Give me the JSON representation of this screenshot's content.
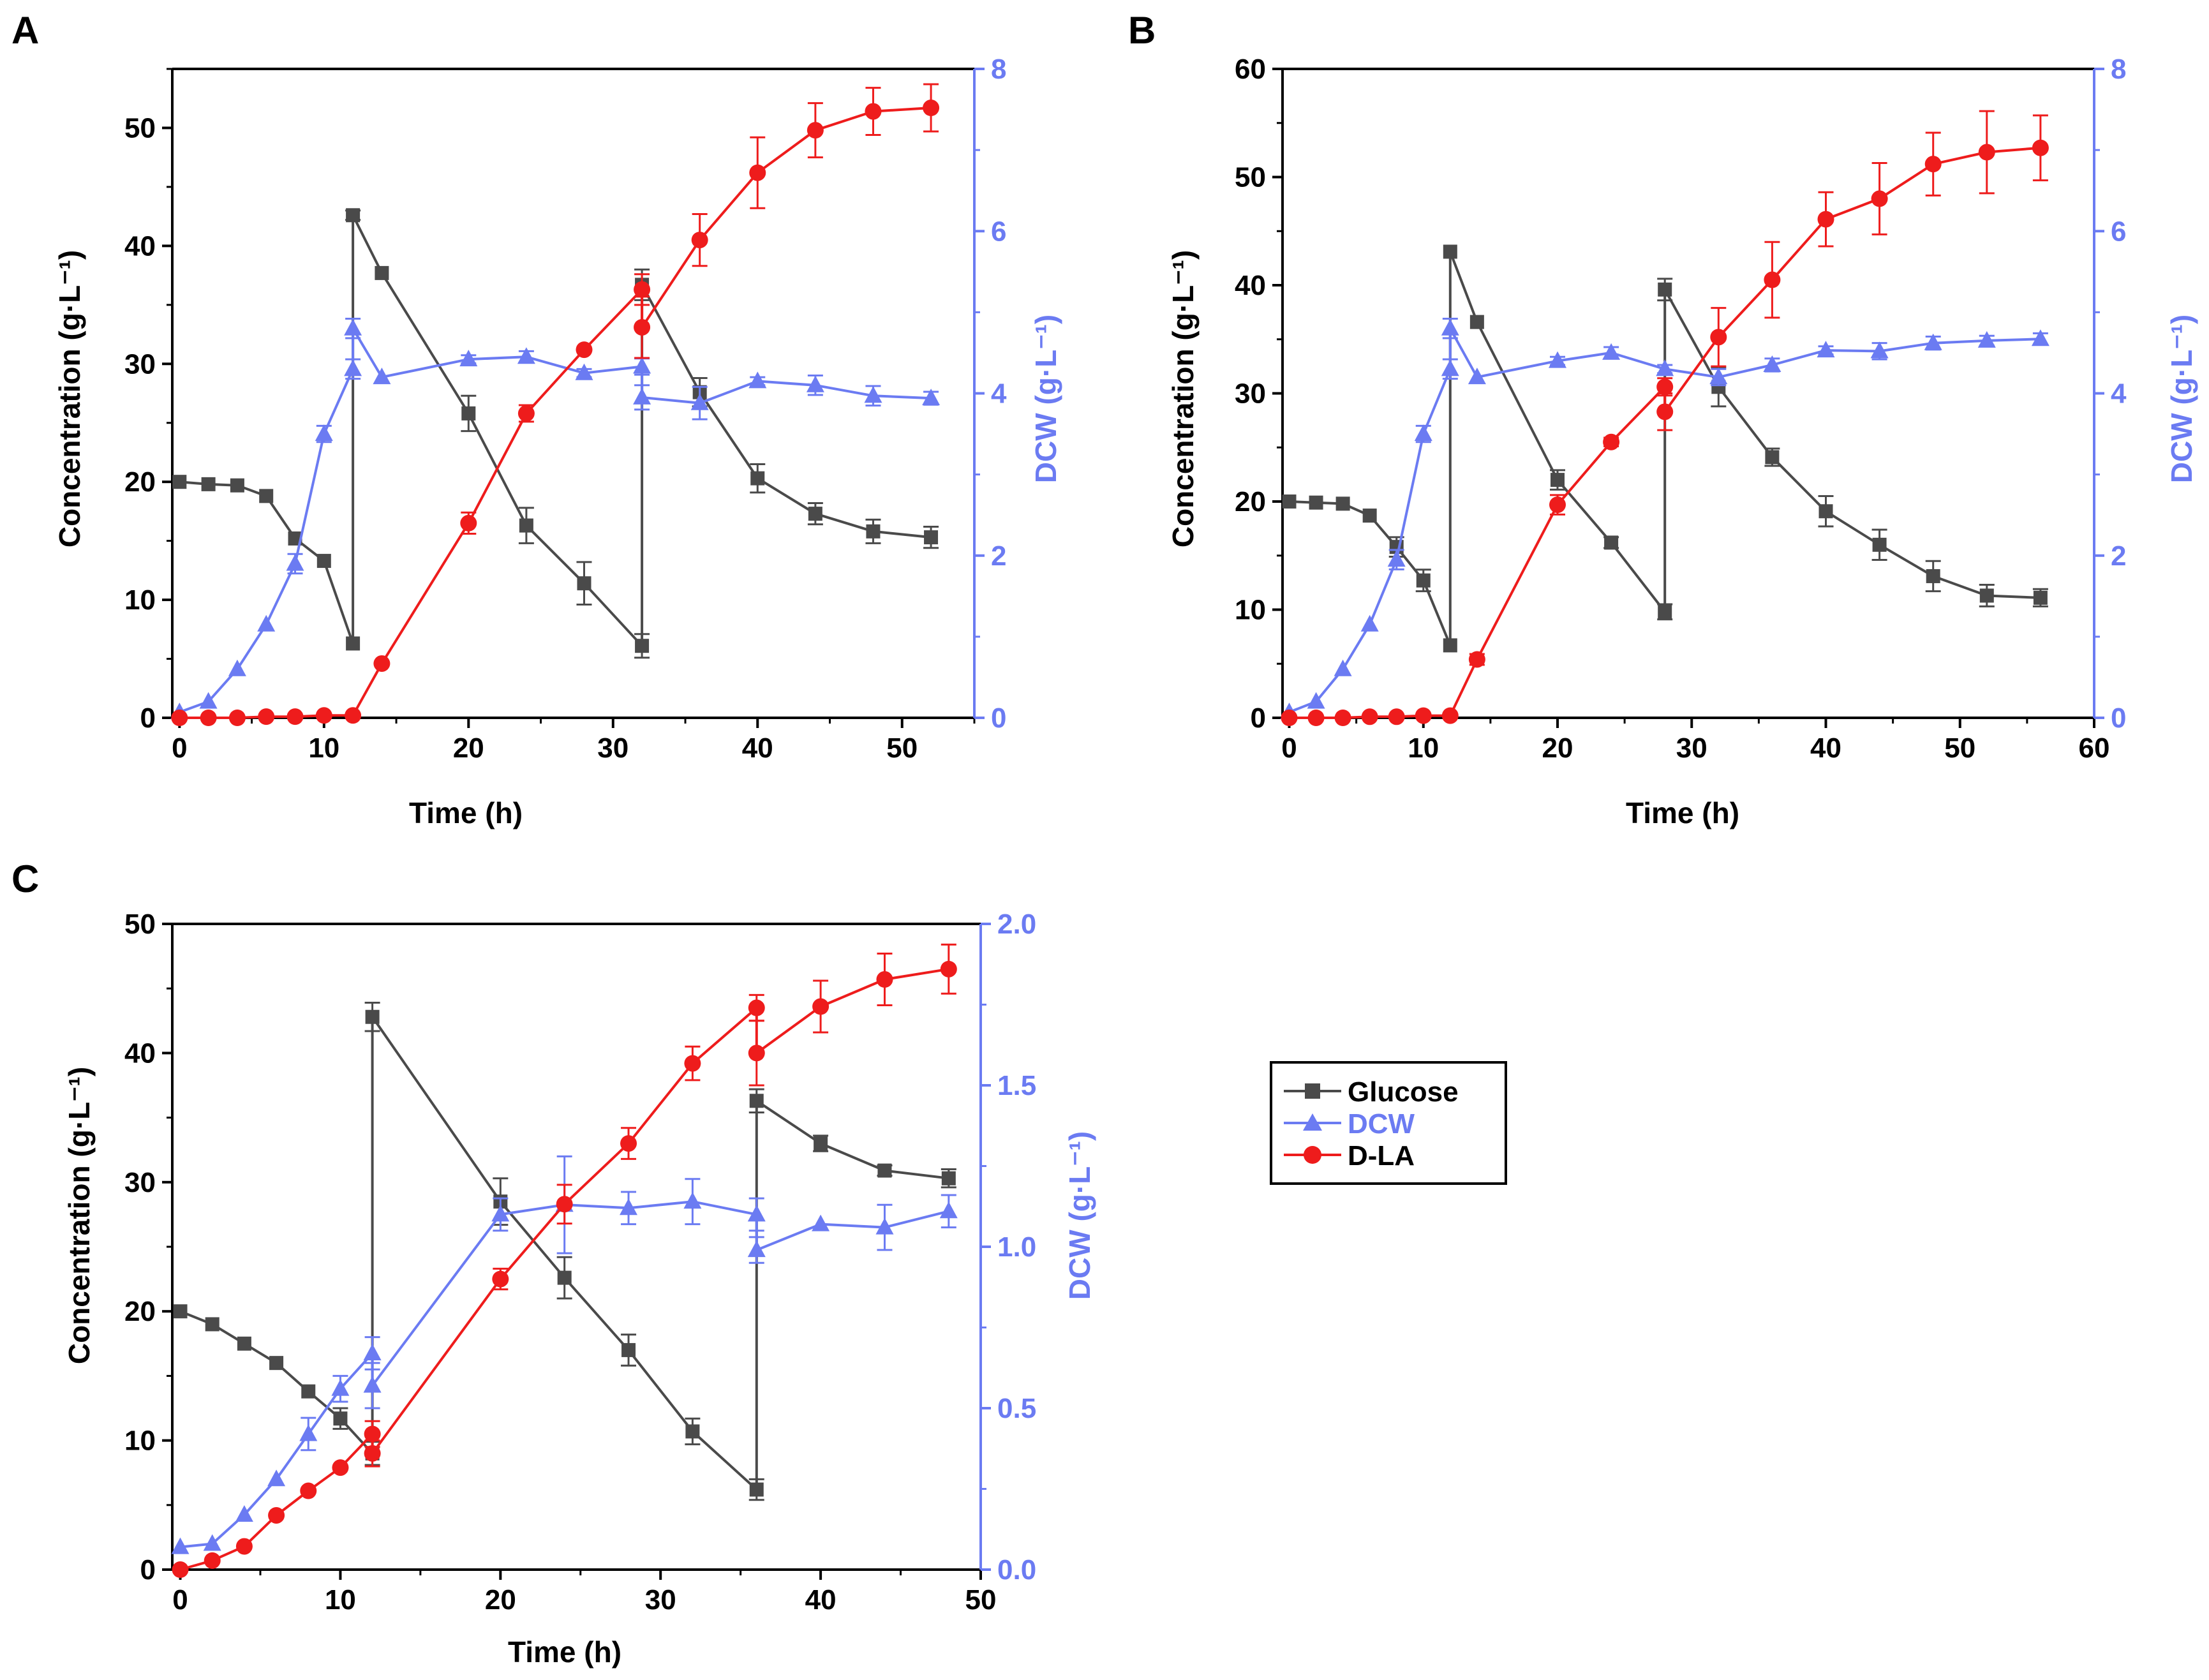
{
  "figure": {
    "colors": {
      "glucose": "#4a4a4a",
      "dcw": "#6b7bf2",
      "dla": "#ee1c1c",
      "axis": "#000000"
    }
  },
  "legend": {
    "items": [
      {
        "label": "Glucose",
        "marker": "square",
        "color": "#4a4a4a"
      },
      {
        "label": "DCW",
        "marker": "triangle",
        "color": "#6b7bf2"
      },
      {
        "label": "D-LA",
        "marker": "circle",
        "color": "#ee1c1c"
      }
    ]
  },
  "chart_data": [
    {
      "panel": "A",
      "type": "line",
      "xlabel": "Time (h)",
      "ylabel": "Concentration (g·L⁻¹)",
      "y2label": "DCW (g·L⁻¹)",
      "xlim": [
        -0.5,
        55
      ],
      "xticks": [
        0,
        10,
        20,
        30,
        40,
        50
      ],
      "ylim": [
        0,
        55
      ],
      "yticks": [
        0,
        10,
        20,
        30,
        40,
        50
      ],
      "y2lim": [
        0,
        8
      ],
      "y2ticks": [
        0,
        2,
        4,
        6,
        8
      ],
      "series": [
        {
          "name": "Glucose",
          "axis": "left",
          "marker": "square",
          "color": "#4a4a4a",
          "x": [
            0,
            2,
            4,
            6,
            8,
            10,
            12,
            12,
            14,
            20,
            24,
            28,
            32,
            32,
            36,
            40,
            44,
            48,
            52
          ],
          "y": [
            20,
            19.8,
            19.7,
            18.8,
            15.2,
            13.3,
            6.3,
            42.6,
            37.7,
            25.8,
            16.3,
            11.4,
            6.1,
            36.7,
            27.6,
            20.3,
            17.3,
            15.8,
            15.3
          ],
          "err": [
            0,
            0,
            0,
            0,
            0,
            0,
            0,
            0.4,
            0,
            1.5,
            1.5,
            1.8,
            1.0,
            1.3,
            1.2,
            1.2,
            0.9,
            1.0,
            0.9
          ]
        },
        {
          "name": "DCW",
          "axis": "right",
          "marker": "triangle",
          "color": "#6b7bf2",
          "x": [
            0,
            2,
            4,
            6,
            8,
            10,
            12,
            12,
            14,
            20,
            24,
            28,
            32,
            32,
            36,
            40,
            44,
            48,
            52
          ],
          "y": [
            0.07,
            0.2,
            0.6,
            1.15,
            1.9,
            3.5,
            4.3,
            4.8,
            4.2,
            4.42,
            4.45,
            4.25,
            4.33,
            3.95,
            3.88,
            4.15,
            4.1,
            3.97,
            3.94
          ],
          "err": [
            0,
            0,
            0,
            0,
            0.12,
            0.1,
            0.12,
            0.12,
            0,
            0.05,
            0.07,
            0.05,
            0.1,
            0.15,
            0.2,
            0.05,
            0.12,
            0.12,
            0.08
          ]
        },
        {
          "name": "D-LA",
          "axis": "left",
          "marker": "circle",
          "color": "#ee1c1c",
          "x": [
            0,
            2,
            4,
            6,
            8,
            10,
            12,
            14,
            20,
            24,
            28,
            32,
            32,
            36,
            40,
            44,
            48,
            52
          ],
          "y": [
            0,
            0,
            0,
            0.1,
            0.1,
            0.2,
            0.2,
            4.6,
            16.5,
            25.8,
            31.2,
            36.3,
            33.1,
            40.5,
            46.2,
            49.8,
            51.4,
            51.7
          ],
          "err": [
            0,
            0,
            0,
            0,
            0,
            0,
            0,
            0,
            0.9,
            0.7,
            0,
            1.3,
            2.6,
            2.2,
            3.0,
            2.3,
            2.0,
            2.0
          ]
        }
      ]
    },
    {
      "panel": "B",
      "type": "line",
      "xlabel": "Time (h)",
      "ylabel": "Concentration (g·L⁻¹)",
      "y2label": "DCW (g·L⁻¹)",
      "xlim": [
        -0.5,
        60
      ],
      "xticks": [
        0,
        10,
        20,
        30,
        40,
        50,
        60
      ],
      "ylim": [
        0,
        60
      ],
      "yticks": [
        0,
        10,
        20,
        30,
        40,
        50,
        60
      ],
      "y2lim": [
        0,
        8
      ],
      "y2ticks": [
        0,
        2,
        4,
        6,
        8
      ],
      "series": [
        {
          "name": "Glucose",
          "axis": "left",
          "marker": "square",
          "color": "#4a4a4a",
          "x": [
            0,
            2,
            4,
            6,
            8,
            10,
            12,
            12,
            14,
            20,
            24,
            28,
            28,
            32,
            36,
            40,
            44,
            48,
            52,
            56
          ],
          "y": [
            20,
            19.9,
            19.8,
            18.7,
            15.8,
            12.7,
            6.7,
            43.1,
            36.6,
            22,
            16.2,
            9.8,
            39.6,
            30.6,
            24.1,
            19.1,
            16,
            13.1,
            11.3,
            11.1
          ],
          "err": [
            0,
            0,
            0,
            0,
            0.9,
            1.0,
            0,
            0,
            0,
            0.9,
            0.5,
            0.7,
            1.0,
            1.8,
            0.8,
            1.4,
            1.4,
            1.4,
            1.0,
            0.8
          ]
        },
        {
          "name": "DCW",
          "axis": "right",
          "marker": "triangle",
          "color": "#6b7bf2",
          "x": [
            0,
            2,
            4,
            6,
            8,
            10,
            12,
            12,
            14,
            20,
            24,
            28,
            32,
            36,
            40,
            44,
            48,
            52,
            56
          ],
          "y": [
            0.07,
            0.2,
            0.6,
            1.15,
            1.95,
            3.5,
            4.3,
            4.8,
            4.2,
            4.4,
            4.5,
            4.3,
            4.2,
            4.35,
            4.53,
            4.52,
            4.62,
            4.65,
            4.67
          ],
          "err": [
            0,
            0,
            0,
            0,
            0.12,
            0.1,
            0.12,
            0.12,
            0,
            0.05,
            0.07,
            0.05,
            0.1,
            0.08,
            0.05,
            0.1,
            0.08,
            0.06,
            0.07
          ]
        },
        {
          "name": "D-LA",
          "axis": "left",
          "marker": "circle",
          "color": "#ee1c1c",
          "x": [
            0,
            2,
            4,
            6,
            8,
            10,
            12,
            14,
            20,
            24,
            28,
            28,
            32,
            36,
            40,
            44,
            48,
            52,
            56
          ],
          "y": [
            0,
            0,
            0,
            0.1,
            0.1,
            0.2,
            0.2,
            5.4,
            19.7,
            25.5,
            30.6,
            28.3,
            35.2,
            40.5,
            46.1,
            48,
            51.2,
            52.3,
            52.7
          ],
          "err": [
            0,
            0,
            0,
            0,
            0,
            0,
            0,
            0.5,
            0.9,
            0.4,
            0.8,
            1.7,
            2.7,
            3.5,
            2.5,
            3.3,
            2.9,
            3.8,
            3.0
          ]
        }
      ]
    },
    {
      "panel": "C",
      "type": "line",
      "xlabel": "Time (h)",
      "ylabel": "Concentration (g·L⁻¹)",
      "y2label": "DCW (g·L⁻¹)",
      "xlim": [
        -0.5,
        50
      ],
      "xticks": [
        0,
        10,
        20,
        30,
        40,
        50
      ],
      "ylim": [
        0,
        50
      ],
      "yticks": [
        0,
        10,
        20,
        30,
        40,
        50
      ],
      "y2lim": [
        0,
        2
      ],
      "y2ticks": [
        0.0,
        0.5,
        1.0,
        1.5,
        2.0
      ],
      "y2ticklabels": [
        "0.0",
        "0.5",
        "1.0",
        "1.5",
        "2.0"
      ],
      "series": [
        {
          "name": "Glucose",
          "axis": "left",
          "marker": "square",
          "color": "#4a4a4a",
          "x": [
            0,
            2,
            4,
            6,
            8,
            10,
            12,
            12,
            20,
            24,
            28,
            32,
            36,
            36,
            40,
            44,
            48
          ],
          "y": [
            20,
            19,
            17.5,
            16,
            13.8,
            11.7,
            9,
            42.8,
            28.5,
            22.6,
            17,
            10.7,
            6.2,
            36.3,
            33,
            30.9,
            30.3
          ],
          "err": [
            0,
            0,
            0,
            0,
            0,
            0.8,
            0.9,
            1.1,
            1.8,
            1.6,
            1.2,
            1.0,
            0.8,
            0.9,
            0.6,
            0.4,
            0.7
          ]
        },
        {
          "name": "DCW",
          "axis": "right",
          "marker": "triangle",
          "color": "#6b7bf2",
          "x": [
            0,
            2,
            4,
            6,
            8,
            10,
            12,
            12,
            20,
            24,
            28,
            32,
            36,
            36,
            40,
            44,
            48
          ],
          "y": [
            0.07,
            0.08,
            0.17,
            0.28,
            0.42,
            0.56,
            0.67,
            0.57,
            1.1,
            1.13,
            1.12,
            1.14,
            1.1,
            0.99,
            1.07,
            1.06,
            1.11
          ],
          "err": [
            0,
            0,
            0,
            0,
            0.05,
            0.04,
            0.05,
            0.07,
            0.05,
            0.15,
            0.05,
            0.07,
            0.05,
            0.04,
            0,
            0.07,
            0.05
          ]
        },
        {
          "name": "D-LA",
          "axis": "left",
          "marker": "circle",
          "color": "#ee1c1c",
          "x": [
            0,
            2,
            4,
            6,
            8,
            10,
            12,
            12,
            20,
            24,
            28,
            32,
            36,
            36,
            40,
            44,
            48
          ],
          "y": [
            0,
            0.7,
            1.8,
            4.2,
            6.1,
            7.9,
            10.5,
            9,
            22.5,
            28.3,
            33,
            39.2,
            43.5,
            40,
            43.6,
            45.7,
            46.5
          ],
          "err": [
            0,
            0,
            0,
            0,
            0,
            0,
            1.0,
            1.0,
            0.8,
            1.5,
            1.2,
            1.3,
            1.0,
            2.5,
            2.0,
            2.0,
            1.9
          ]
        }
      ]
    }
  ]
}
